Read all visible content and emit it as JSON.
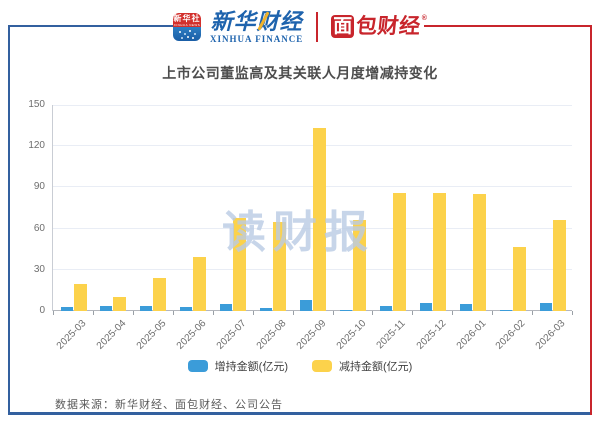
{
  "header": {
    "xinhua_icon": {
      "cn": "新华社",
      "en": "XINHUA NEWS"
    },
    "xinhua_wordmark": {
      "cn": "新华财经",
      "en": "XINHUA FINANCE"
    },
    "bread_logo": {
      "first": "面",
      "rest": "包财经",
      "reg": "®"
    }
  },
  "title": "上市公司董监高及其关联人月度增减持变化",
  "watermark": "读财报",
  "footer": "数据来源：新华财经、面包财经、公司公告",
  "colors": {
    "frame_blue": "#33609f",
    "frame_red": "#c8252c",
    "bar_increase": "#3b9cd9",
    "bar_decrease": "#fcd24b"
  },
  "chart_data": {
    "type": "bar",
    "title": "上市公司董监高及其关联人月度增减持变化",
    "categories": [
      "2025-03",
      "2025-04",
      "2025-05",
      "2025-06",
      "2025-07",
      "2025-08",
      "2025-09",
      "2025-10",
      "2025-11",
      "2025-12",
      "2026-01",
      "2026-02",
      "2026-03"
    ],
    "series": [
      {
        "name": "增持金额(亿元)",
        "color": "#3b9cd9",
        "values": [
          3,
          4,
          4,
          3,
          5,
          2,
          8,
          1,
          4,
          6,
          5,
          1,
          6
        ]
      },
      {
        "name": "减持金额(亿元)",
        "color": "#fcd24b",
        "values": [
          20,
          10,
          24,
          39,
          68,
          65,
          133,
          66,
          86,
          86,
          85,
          47,
          66
        ]
      }
    ],
    "xlabel": "",
    "ylabel": "",
    "ylim": [
      0,
      150
    ],
    "ytick_step": 30,
    "grid": true,
    "legend_position": "bottom",
    "xtick_rotation": -45
  }
}
